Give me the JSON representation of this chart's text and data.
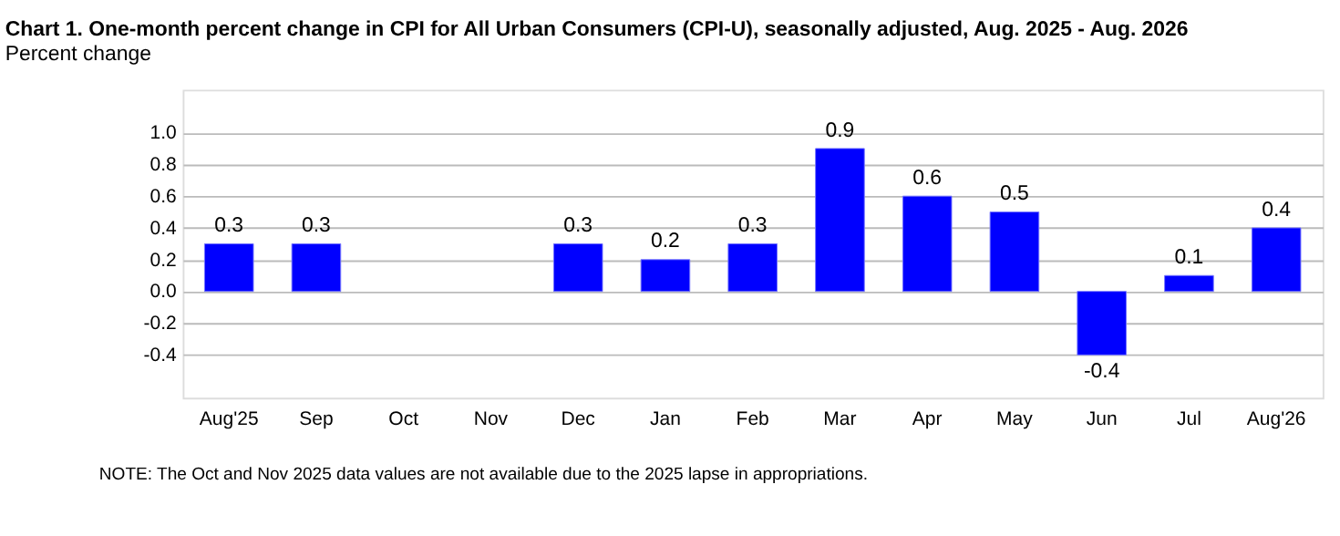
{
  "chart_data": {
    "type": "bar",
    "title": "Chart 1. One-month percent change in CPI for All Urban Consumers (CPI-U), seasonally adjusted, Aug. 2025 - Aug. 2026",
    "subtitle": "Percent change",
    "categories": [
      "Aug'25",
      "Sep",
      "Oct",
      "Nov",
      "Dec",
      "Jan",
      "Feb",
      "Mar",
      "Apr",
      "May",
      "Jun",
      "Jul",
      "Aug'26"
    ],
    "values": [
      0.3,
      0.3,
      null,
      null,
      0.3,
      0.2,
      0.3,
      0.9,
      0.6,
      0.5,
      -0.4,
      0.1,
      0.4
    ],
    "color": "#0000ff",
    "ylim": [
      -0.67,
      1.27
    ],
    "yticks": [
      {
        "value": -0.4,
        "label": "-0.4"
      },
      {
        "value": -0.2,
        "label": "-0.2"
      },
      {
        "value": 0.0,
        "label": "0.0"
      },
      {
        "value": 0.2,
        "label": "0.2"
      },
      {
        "value": 0.4,
        "label": "0.4"
      },
      {
        "value": 0.6,
        "label": "0.6"
      },
      {
        "value": 0.8,
        "label": "0.8"
      },
      {
        "value": 1.0,
        "label": "1.0"
      }
    ],
    "grid": "y",
    "data_labels": true,
    "annotations": [
      "NOTE: The Oct and Nov 2025 data values are not available due to the 2025 lapse in appropriations."
    ]
  }
}
